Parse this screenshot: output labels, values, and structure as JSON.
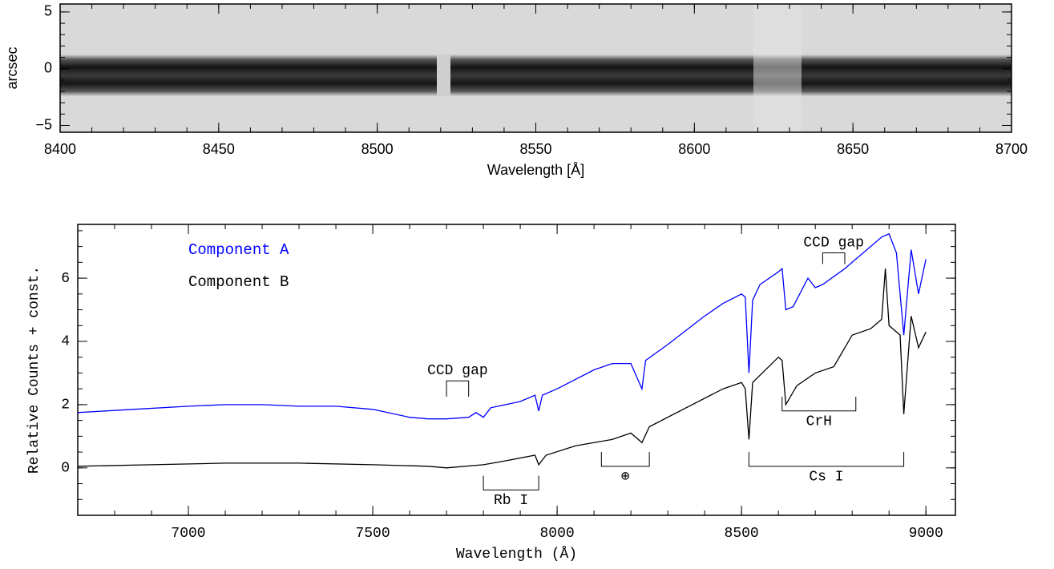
{
  "chart_data": [
    {
      "type": "image",
      "xlabel": "Wavelength [Å]",
      "ylabel": "arcsec",
      "xlim": [
        8400,
        8700
      ],
      "ylim": [
        -5.6,
        5.7
      ],
      "xticks": [
        8400,
        8450,
        8500,
        8550,
        8600,
        8650,
        8700
      ],
      "yticks": [
        {
          "value": -5,
          "label": "−5"
        },
        0,
        5
      ]
    },
    {
      "type": "line",
      "xlabel": "Wavelength (Å)",
      "ylabel": "Relative Counts + const.",
      "xlim": [
        6700,
        9080
      ],
      "ylim": [
        -1.5,
        7.7
      ],
      "xticks": [
        7000,
        7500,
        8000,
        8500,
        9000
      ],
      "yticks": [
        0,
        2,
        4,
        6
      ],
      "legend": "upper left",
      "series": [
        {
          "name": "Component A",
          "color": "#0000ff",
          "x": [
            6700,
            6850,
            7000,
            7100,
            7200,
            7300,
            7400,
            7500,
            7600,
            7650,
            7700,
            7760,
            7780,
            7800,
            7820,
            7900,
            7940,
            7950,
            7960,
            8000,
            8100,
            8150,
            8200,
            8230,
            8240,
            8300,
            8400,
            8450,
            8500,
            8510,
            8520,
            8530,
            8550,
            8600,
            8610,
            8620,
            8640,
            8680,
            8700,
            8720,
            8780,
            8800,
            8850,
            8880,
            8900,
            8920,
            8940,
            8960,
            8980,
            9000
          ],
          "values": [
            1.75,
            1.85,
            1.95,
            2.0,
            2.0,
            1.95,
            1.95,
            1.85,
            1.6,
            1.55,
            1.55,
            1.6,
            1.75,
            1.6,
            1.9,
            2.1,
            2.3,
            1.8,
            2.3,
            2.5,
            3.1,
            3.3,
            3.3,
            2.5,
            3.4,
            3.9,
            4.8,
            5.2,
            5.5,
            5.4,
            3.0,
            5.3,
            5.8,
            6.2,
            6.3,
            5.0,
            5.1,
            6.0,
            5.7,
            5.8,
            6.3,
            6.5,
            7.0,
            7.3,
            7.4,
            6.8,
            4.2,
            6.9,
            5.5,
            6.6
          ]
        },
        {
          "name": "Component B",
          "color": "#000000",
          "x": [
            6700,
            6900,
            7100,
            7300,
            7500,
            7650,
            7700,
            7800,
            7850,
            7940,
            7950,
            7970,
            8050,
            8150,
            8200,
            8230,
            8250,
            8350,
            8450,
            8500,
            8510,
            8520,
            8530,
            8600,
            8610,
            8620,
            8650,
            8700,
            8750,
            8780,
            8800,
            8850,
            8880,
            8890,
            8900,
            8930,
            8940,
            8960,
            8980,
            9000
          ],
          "values": [
            0.05,
            0.1,
            0.15,
            0.15,
            0.1,
            0.05,
            0.0,
            0.1,
            0.2,
            0.4,
            0.1,
            0.4,
            0.7,
            0.9,
            1.1,
            0.8,
            1.3,
            1.9,
            2.5,
            2.7,
            2.5,
            0.9,
            2.7,
            3.5,
            3.4,
            2.0,
            2.6,
            3.0,
            3.2,
            3.8,
            4.2,
            4.4,
            4.7,
            6.3,
            4.5,
            4.2,
            1.7,
            4.8,
            3.8,
            4.3
          ]
        }
      ],
      "annotations": [
        {
          "text": "CCD gap",
          "x": [
            7700,
            7760
          ],
          "y": [
            2.75,
            2.25
          ]
        },
        {
          "text": "CCD gap",
          "x": [
            8720,
            8780
          ],
          "y": [
            6.8,
            6.45
          ]
        },
        {
          "text": "Rb I",
          "x": [
            7800,
            7950
          ],
          "y": [
            -0.7,
            -0.25
          ]
        },
        {
          "text": "⊕",
          "x": [
            8120,
            8250
          ],
          "y": [
            0.05,
            0.5
          ]
        },
        {
          "text": "Cs I",
          "x": [
            8520,
            8940
          ],
          "y": [
            0.05,
            0.5
          ]
        },
        {
          "text": "CrH",
          "x": [
            8610,
            8810
          ],
          "y": [
            1.8,
            2.25
          ]
        }
      ]
    }
  ]
}
